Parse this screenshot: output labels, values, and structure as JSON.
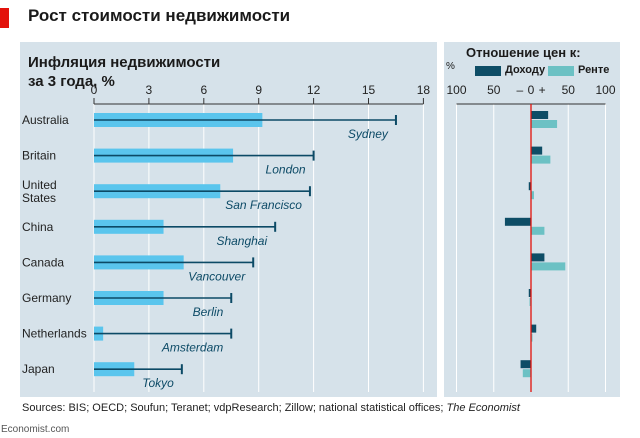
{
  "headline": "Рост стоимости недвижимости",
  "left_title": "Инфляция недвижимости\nза 3 года, %",
  "right_title": "Отношение цен к:",
  "percent_sign": "%",
  "sources_text": "Sources: BIS; OECD; Soufun; Teranet; vdpResearch; Zillow; national statistical offices; ",
  "sources_publisher": "The Economist",
  "credit": "Economist.com",
  "colors": {
    "national_bar": "#5ac5ed",
    "city_line": "#0c4a66",
    "income_bar": "#0e4d66",
    "rent_bar": "#6cc1c4",
    "panel_bg": "#d6e2ea",
    "zero_line": "#e3120b",
    "accent": "#e3120b"
  },
  "chart_data": [
    {
      "type": "bar",
      "orientation": "horizontal",
      "title": "Инфляция недвижимости за 3 года, %",
      "categories": [
        "Australia",
        "Britain",
        "United States",
        "China",
        "Canada",
        "Germany",
        "Netherlands",
        "Japan"
      ],
      "category_labels": [
        "Australia",
        "Britain",
        "United\nStates",
        "China",
        "Canada",
        "Germany",
        "Netherlands",
        "Japan"
      ],
      "x_ticks": [
        0,
        3,
        6,
        9,
        12,
        15,
        18
      ],
      "xlim": [
        0,
        18
      ],
      "grid": true,
      "series": [
        {
          "values": [
            9.2,
            7.6,
            6.9,
            3.8,
            4.9,
            3.8,
            0.5,
            2.2
          ]
        },
        {
          "values": [
            16.5,
            12.0,
            11.8,
            9.9,
            8.7,
            7.5,
            7.5,
            4.8
          ]
        }
      ],
      "city_labels": [
        "Sydney",
        "London",
        "San Francisco",
        "Shanghai",
        "Vancouver",
        "Berlin",
        "Amsterdam",
        "Tokyo"
      ]
    },
    {
      "type": "bar",
      "orientation": "horizontal",
      "title": "Отношение цен к:",
      "unit": "%",
      "categories": [
        "Australia",
        "Britain",
        "United States",
        "China",
        "Canada",
        "Germany",
        "Netherlands",
        "Japan"
      ],
      "x_ticks": [
        100,
        50,
        "–",
        0,
        "+",
        50,
        100
      ],
      "xlim": [
        -100,
        100
      ],
      "legend_position": "top",
      "series": [
        {
          "name": "Доходу",
          "values": [
            23,
            15,
            -3,
            -35,
            18,
            -3,
            7,
            -14
          ]
        },
        {
          "name": "Ренте",
          "values": [
            35,
            26,
            4,
            18,
            46,
            -2,
            2,
            -11
          ]
        }
      ]
    }
  ]
}
